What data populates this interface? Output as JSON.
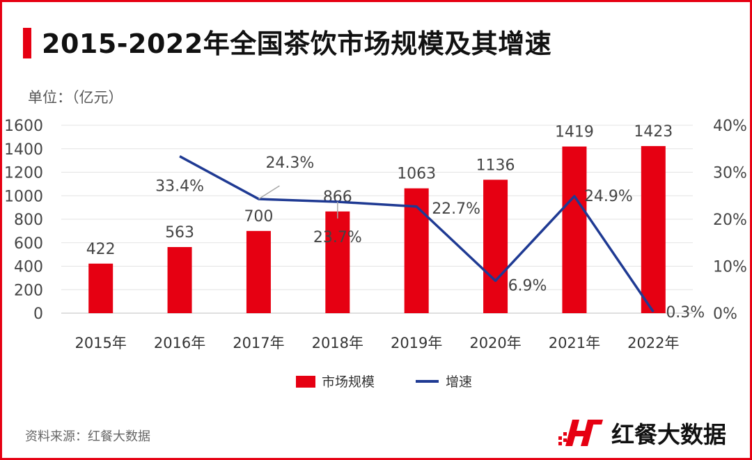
{
  "header": {
    "title": "2015-2022年全国茶饮市场规模及其增速",
    "unit": "单位：（亿元）"
  },
  "footer": {
    "source": "资料来源：红餐大数据",
    "brand": "红餐大数据"
  },
  "colors": {
    "bar": "#e60012",
    "line": "#1f3a93",
    "accent": "#e60012"
  },
  "chart_data": {
    "type": "bar",
    "categories": [
      "2015年",
      "2016年",
      "2017年",
      "2018年",
      "2019年",
      "2020年",
      "2021年",
      "2022年"
    ],
    "series": [
      {
        "name": "市场规模",
        "type": "bar",
        "axis": "left",
        "values": [
          422,
          563,
          700,
          866,
          1063,
          1136,
          1419,
          1423
        ]
      },
      {
        "name": "增速",
        "type": "line",
        "axis": "right",
        "values": [
          null,
          33.4,
          24.3,
          23.7,
          22.7,
          6.9,
          24.9,
          0.3
        ]
      }
    ],
    "bar_labels": [
      "422",
      "563",
      "700",
      "866",
      "1063",
      "1136",
      "1419",
      "1423"
    ],
    "line_labels": [
      "",
      "33.4%",
      "24.3%",
      "23.7%",
      "22.7%",
      "6.9%",
      "24.9%",
      "0.3%"
    ],
    "y_left": {
      "range": [
        0,
        1600
      ],
      "ticks": [
        "0",
        "200",
        "400",
        "600",
        "800",
        "1000",
        "1200",
        "1400",
        "1600"
      ]
    },
    "y_right": {
      "range": [
        0,
        40
      ],
      "ticks": [
        "0%",
        "10%",
        "20%",
        "30%",
        "40%"
      ]
    },
    "grid": true,
    "legend": {
      "position": "bottom",
      "entries": [
        "市场规模",
        "增速"
      ]
    }
  }
}
